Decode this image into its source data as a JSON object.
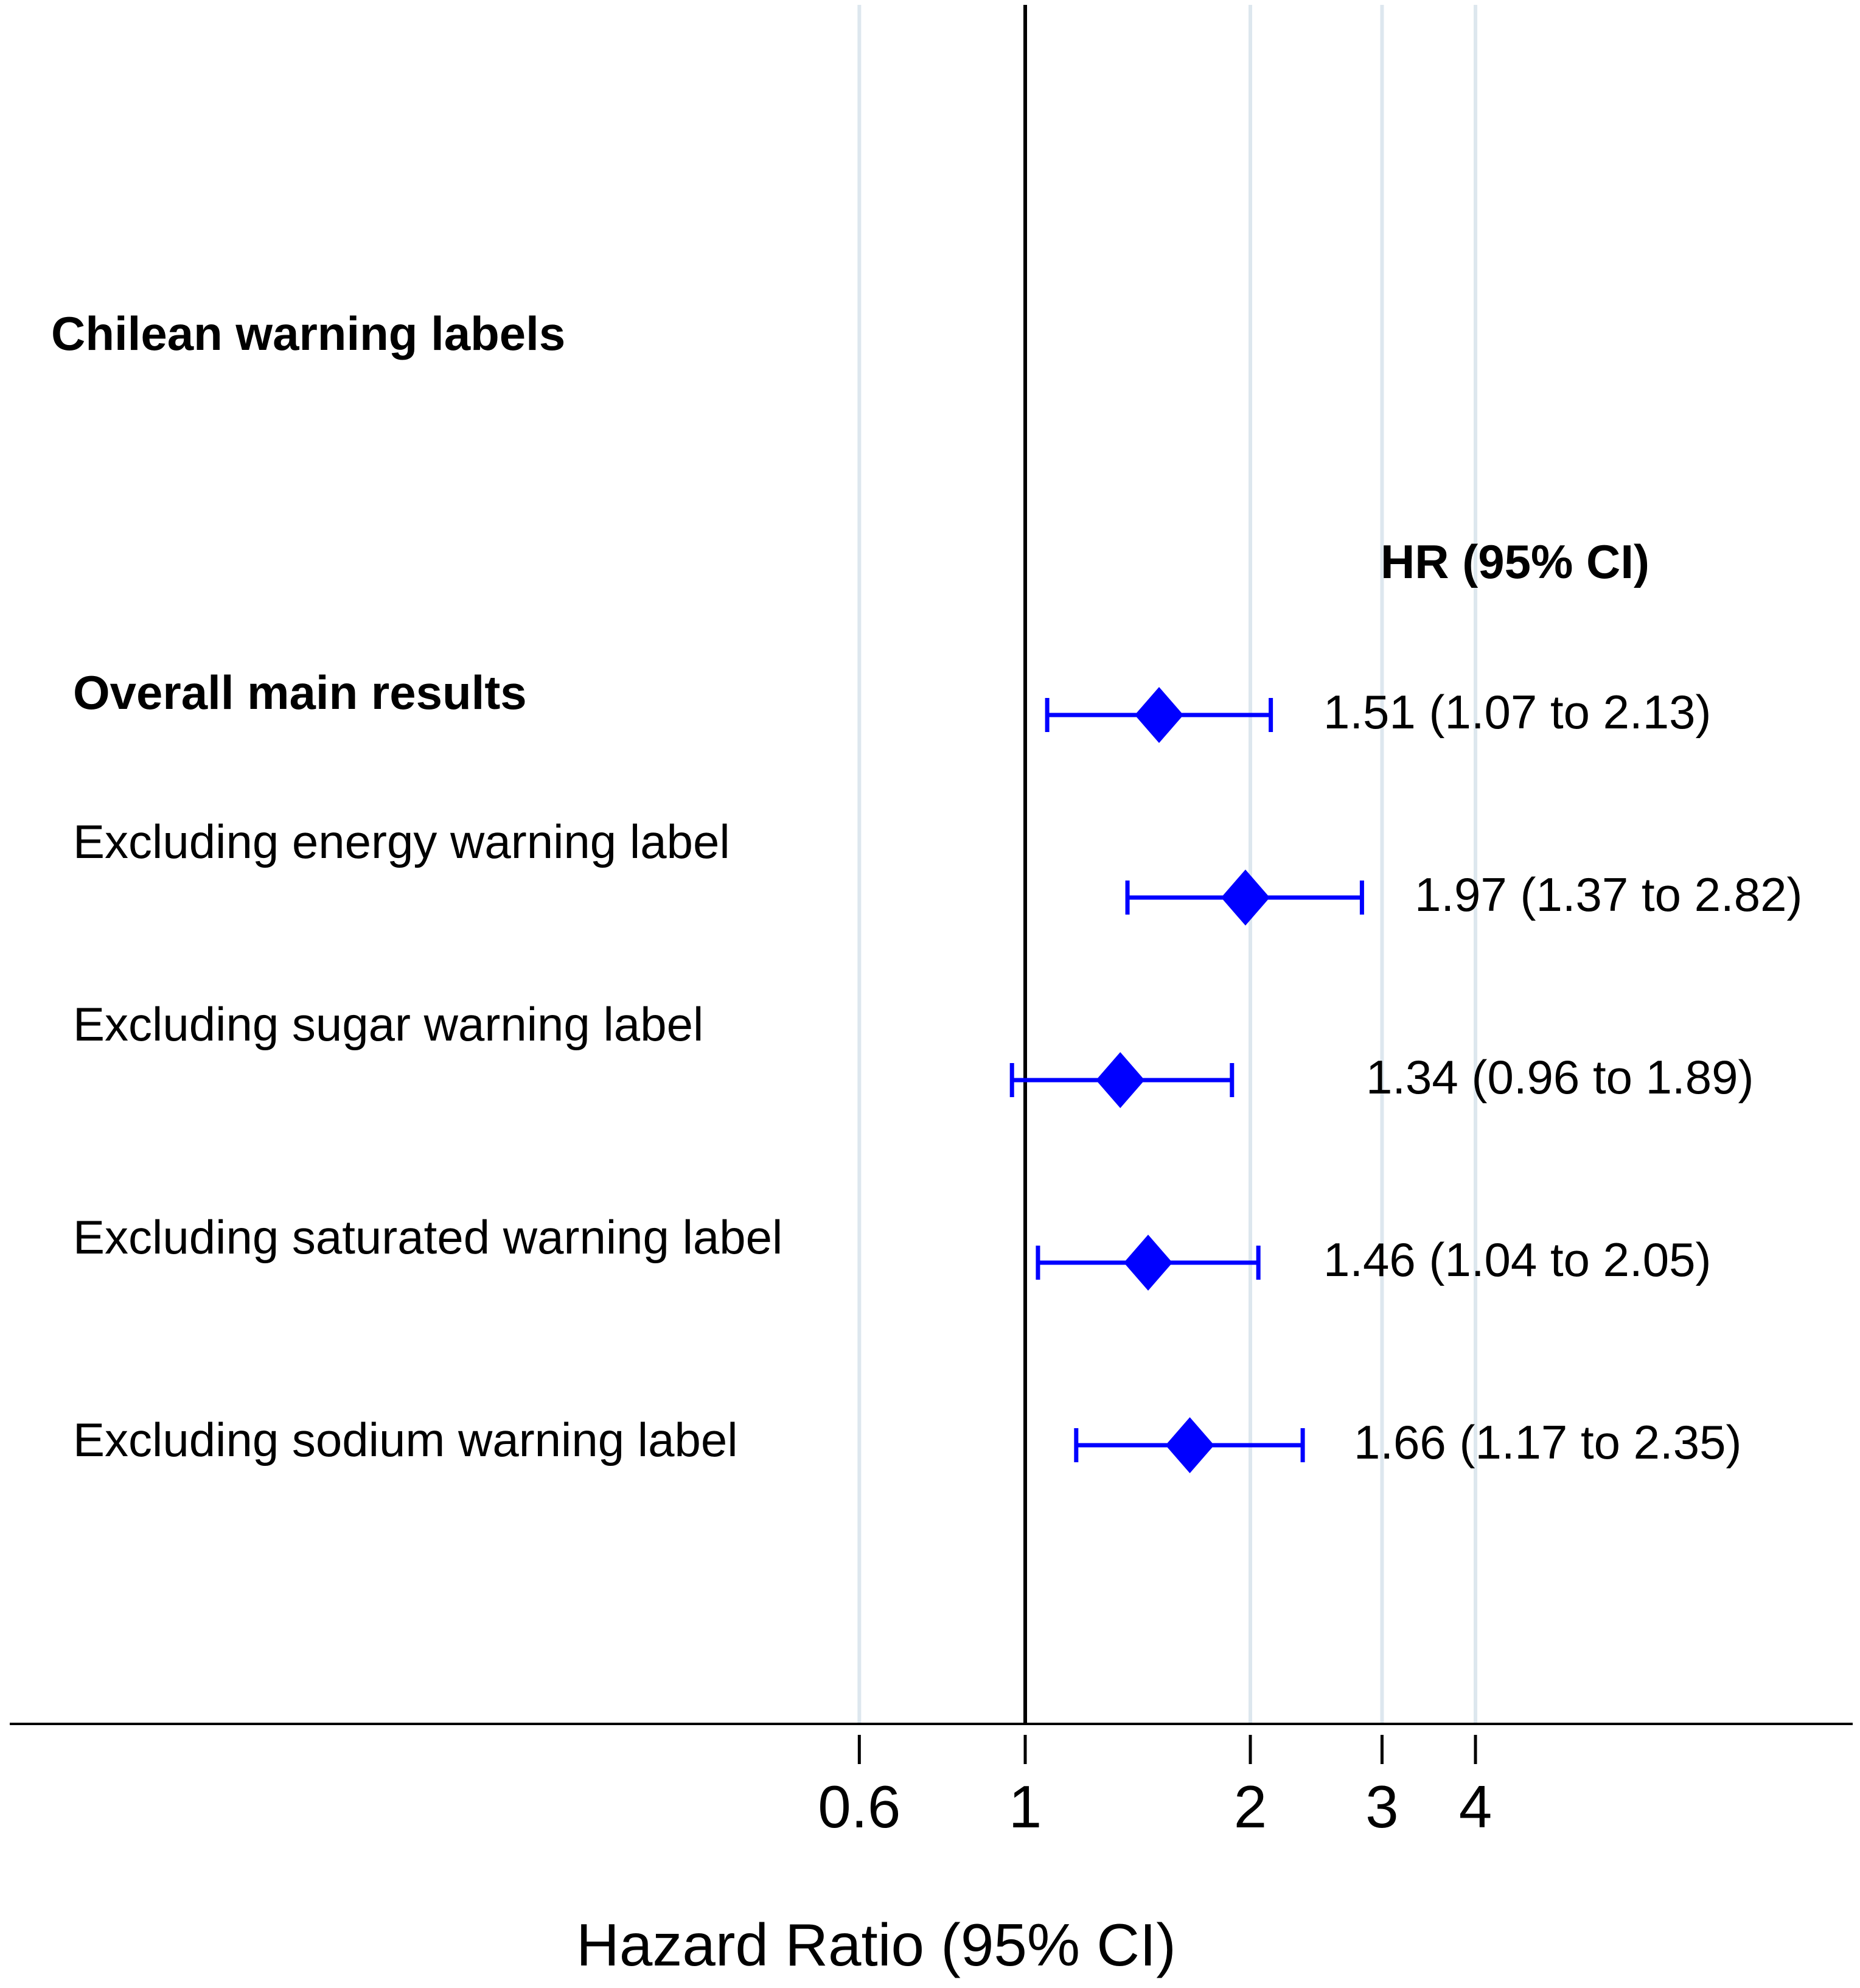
{
  "chart_data": {
    "type": "forest",
    "section_title": "Chilean warning labels",
    "column_header": "HR (95% CI)",
    "xlabel": "Hazard Ratio (95% CI)",
    "x_scale": "log",
    "null_line": 1,
    "xlim": [
      0.6,
      4
    ],
    "xticks": [
      0.6,
      1,
      2,
      3,
      4
    ],
    "xtick_labels": [
      "0.6",
      "1",
      "2",
      "3",
      "4"
    ],
    "marker_color": "#0000ff",
    "rows": [
      {
        "label": "Overall main results",
        "bold": true,
        "hr": 1.51,
        "lo": 1.07,
        "hi": 2.13,
        "text": "1.51 (1.07 to 2.13)"
      },
      {
        "label": "Excluding energy warning label",
        "bold": false,
        "hr": 1.97,
        "lo": 1.37,
        "hi": 2.82,
        "text": "1.97 (1.37 to 2.82)"
      },
      {
        "label": "Excluding sugar warning label",
        "bold": false,
        "hr": 1.34,
        "lo": 0.96,
        "hi": 1.89,
        "text": "1.34 (0.96 to 1.89)"
      },
      {
        "label": "Excluding saturated warning label",
        "bold": false,
        "hr": 1.46,
        "lo": 1.04,
        "hi": 2.05,
        "text": "1.46 (1.04 to 2.05)"
      },
      {
        "label": "Excluding sodium warning label",
        "bold": false,
        "hr": 1.66,
        "lo": 1.17,
        "hi": 2.35,
        "text": "1.66 (1.17 to 2.35)"
      }
    ]
  }
}
